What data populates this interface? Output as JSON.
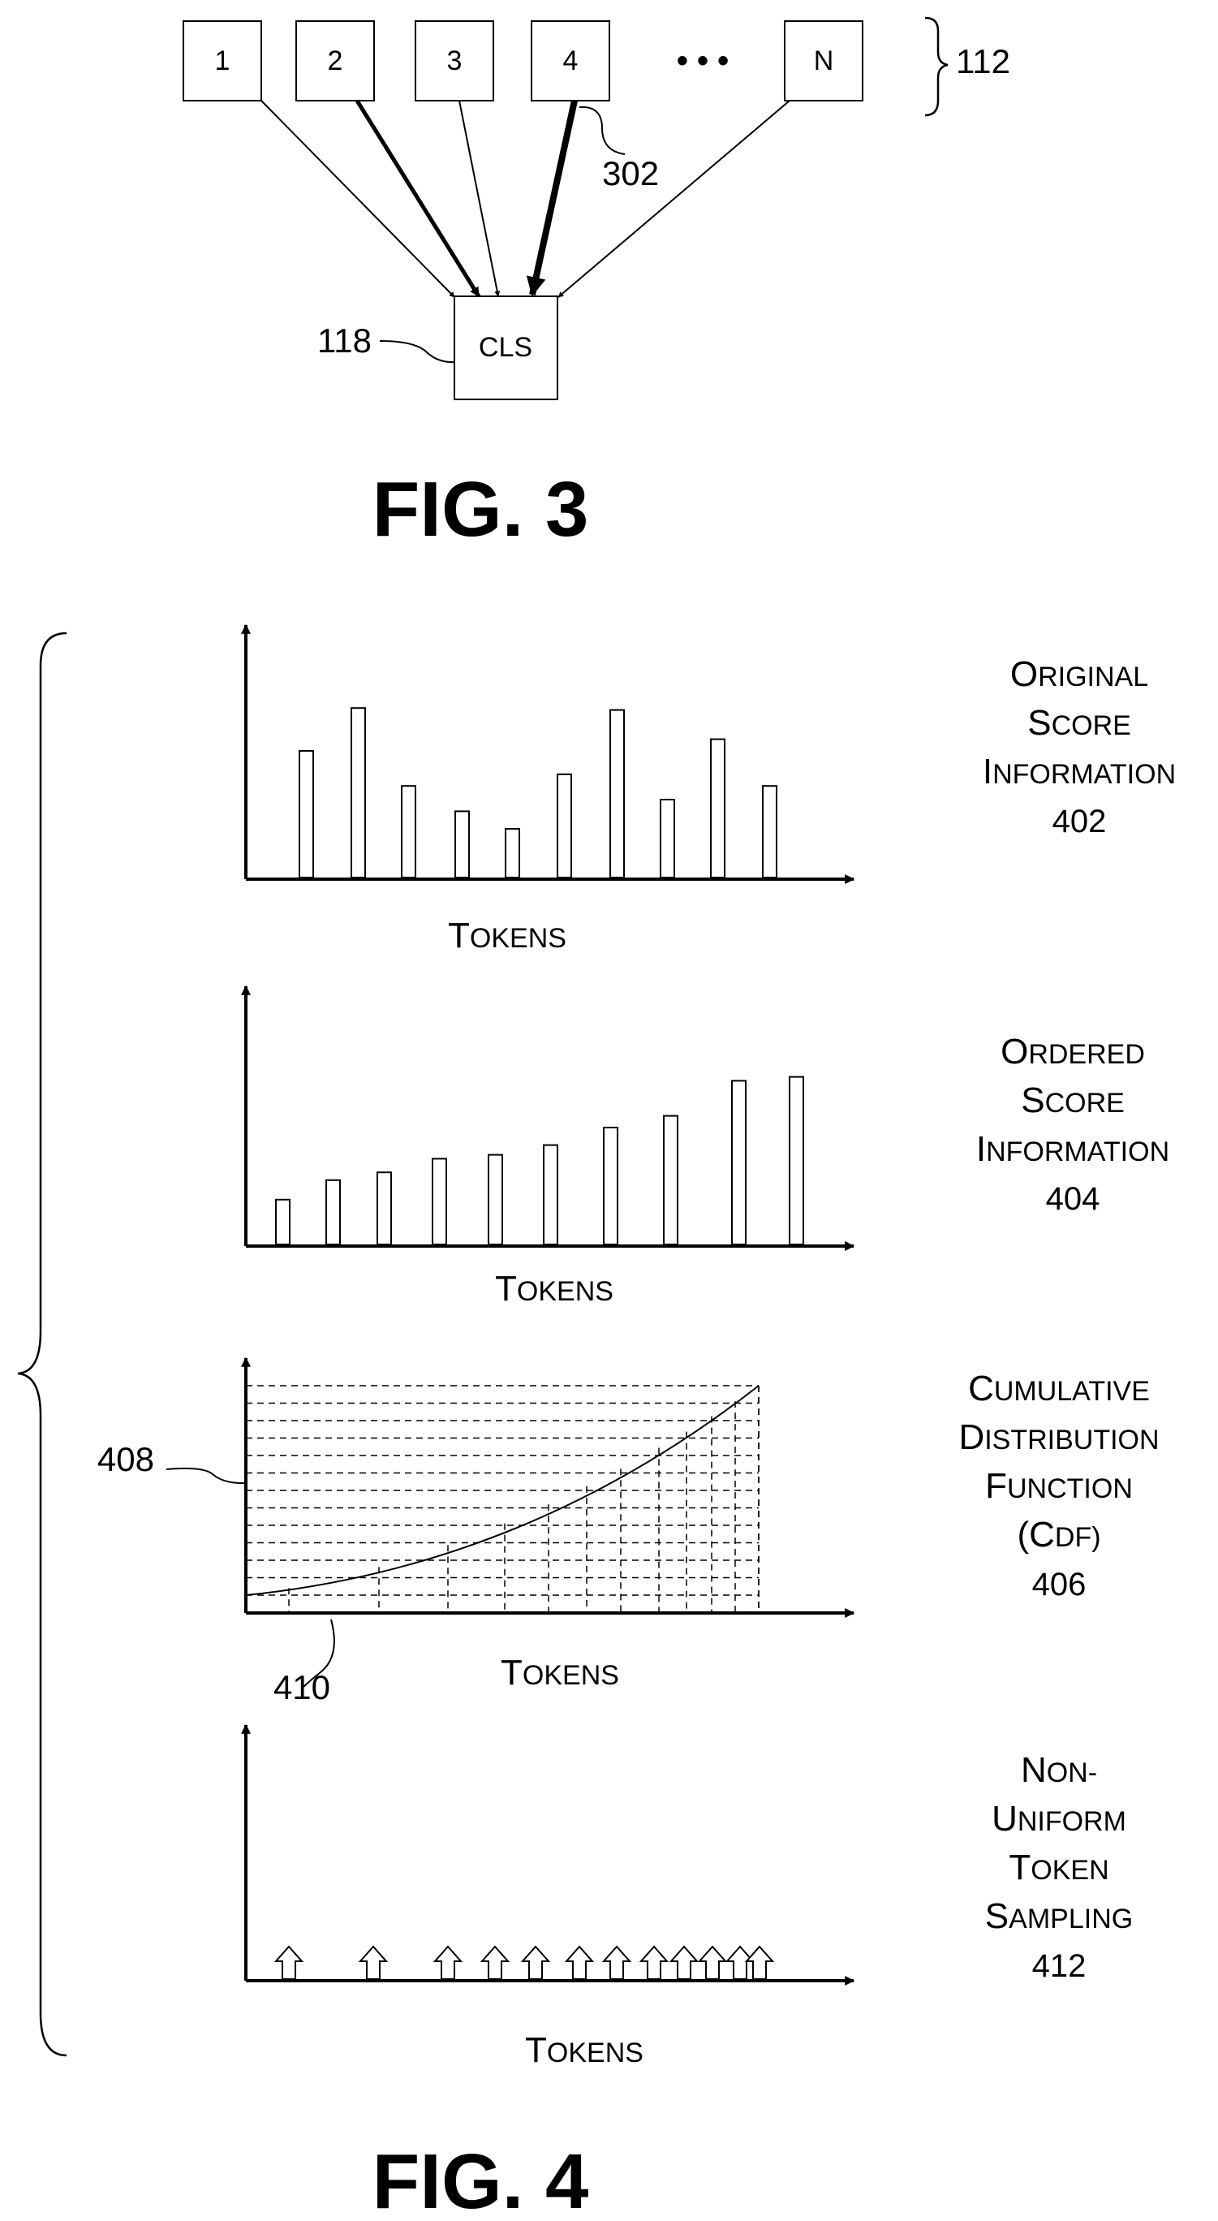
{
  "fig3": {
    "tokens": [
      "1",
      "2",
      "3",
      "4",
      "N"
    ],
    "ellipsis": "• • •",
    "cls_label": "CLS",
    "ref_tokens": "112",
    "ref_cls": "118",
    "ref_arrow": "302",
    "caption": "FIG. 3"
  },
  "fig4": {
    "caption": "FIG. 4",
    "panels": [
      {
        "id": "original",
        "title_lines": [
          "ORIGINAL",
          "SCORE",
          "INFORMATION"
        ],
        "ref": "402",
        "xlabel": "TOKENS",
        "type": "bar",
        "values": [
          0.65,
          0.87,
          0.47,
          0.34,
          0.25,
          0.53,
          0.86,
          0.4,
          0.71,
          0.47
        ]
      },
      {
        "id": "ordered",
        "title_lines": [
          "ORDERED",
          "SCORE",
          "INFORMATION"
        ],
        "ref": "404",
        "xlabel": "TOKENS",
        "type": "bar",
        "values": [
          0.23,
          0.33,
          0.37,
          0.44,
          0.46,
          0.51,
          0.6,
          0.66,
          0.84,
          0.86
        ]
      },
      {
        "id": "cdf",
        "title_lines": [
          "CUMULATIVE",
          "DISTRIBUTION",
          "FUNCTION",
          "(CDF)"
        ],
        "ref": "406",
        "xlabel": "TOKENS",
        "type": "line",
        "ref_curve": "408",
        "ref_axis": "410"
      },
      {
        "id": "sampling",
        "title_lines": [
          "NON-",
          "UNIFORM",
          "TOKEN",
          "SAMPLING"
        ],
        "ref": "412",
        "xlabel": "TOKENS",
        "type": "scatter"
      }
    ]
  }
}
